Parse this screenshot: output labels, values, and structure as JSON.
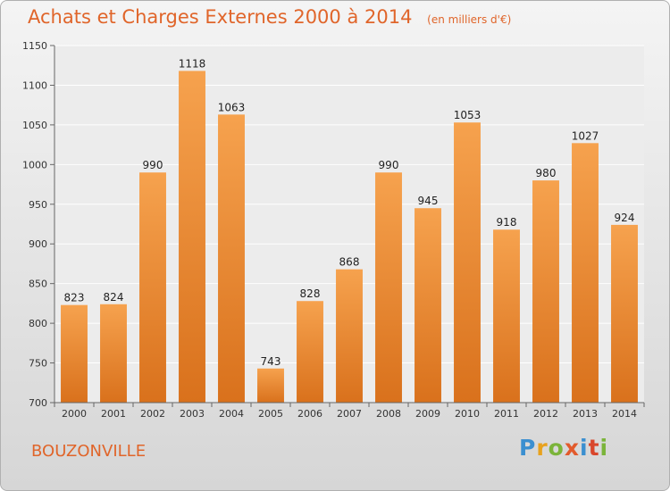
{
  "header": {
    "title": "Achats et Charges Externes 2000 à 2014",
    "subtitle": "(en milliers d'€)"
  },
  "footer": {
    "city": "BOUZONVILLE",
    "logo": "Proxiti"
  },
  "colors": {
    "bar_light": "#f6a24e",
    "bar_dark": "#d9711c",
    "title": "#e0652a"
  },
  "chart_data": {
    "type": "bar",
    "title": "Achats et Charges Externes 2000 à 2014",
    "subtitle": "(en milliers d'€)",
    "xlabel": "",
    "ylabel": "",
    "categories": [
      "2000",
      "2001",
      "2002",
      "2003",
      "2004",
      "2005",
      "2006",
      "2007",
      "2008",
      "2009",
      "2010",
      "2011",
      "2012",
      "2013",
      "2014"
    ],
    "values": [
      823,
      824,
      990,
      1118,
      1063,
      743,
      828,
      868,
      990,
      945,
      1053,
      918,
      980,
      1027,
      924
    ],
    "ylim": [
      700,
      1150
    ],
    "yticks": [
      700,
      750,
      800,
      850,
      900,
      950,
      1000,
      1050,
      1100,
      1150
    ],
    "grid": true,
    "legend": "none"
  }
}
